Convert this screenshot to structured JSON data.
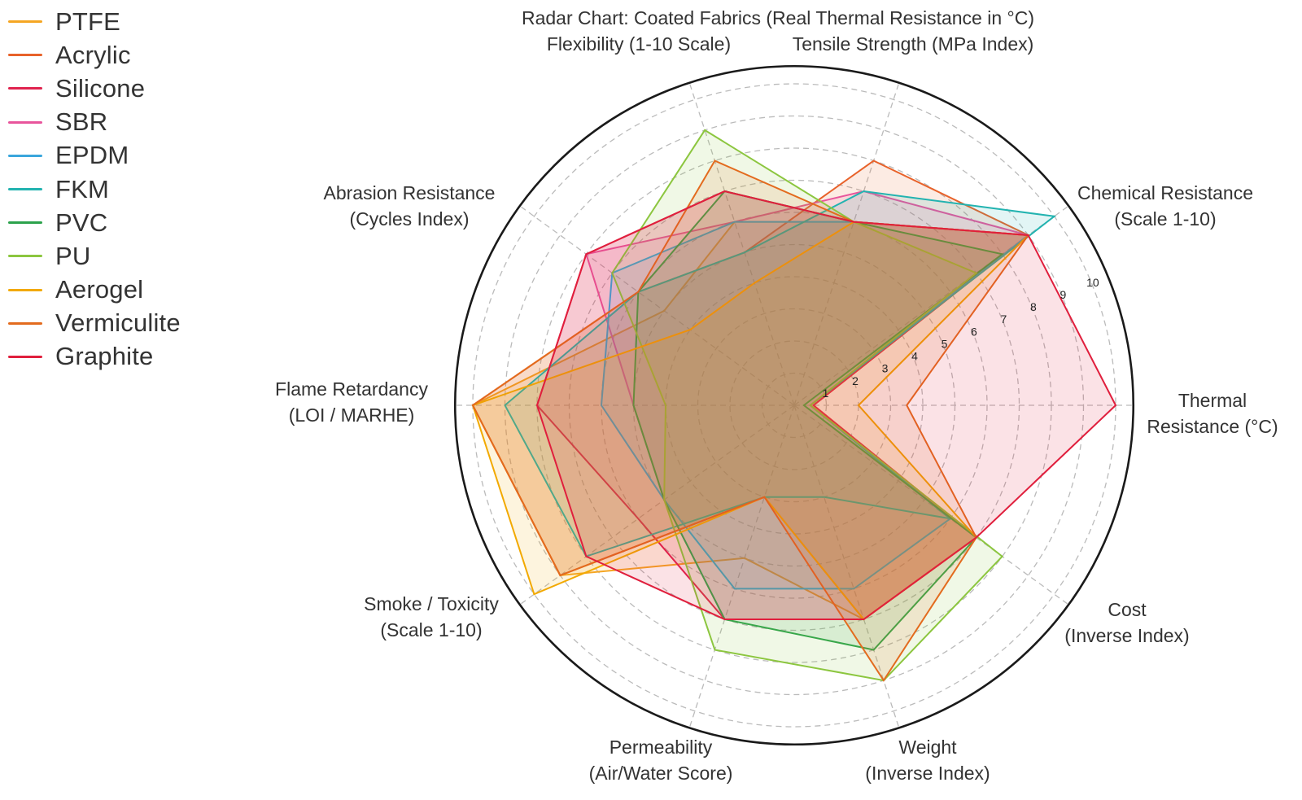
{
  "chart_data": {
    "type": "radar",
    "title": "Radar Chart: Coated Fabrics (Real Thermal Resistance in °C)",
    "axes": [
      {
        "label": "Thermal\nResistance (°C)",
        "angle": 0
      },
      {
        "label": "Chemical Resistance\n(Scale 1-10)",
        "angle": 36
      },
      {
        "label": "Tensile Strength (MPa Index)",
        "angle": 72
      },
      {
        "label": "Flexibility (1-10 Scale)",
        "angle": 108
      },
      {
        "label": "Abrasion Resistance\n(Cycles Index)",
        "angle": 144
      },
      {
        "label": "Flame Retardancy\n(LOI / MARHE)",
        "angle": 180
      },
      {
        "label": "Smoke / Toxicity\n(Scale 1-10)",
        "angle": 216
      },
      {
        "label": "Permeability\n(Air/Water Score)",
        "angle": 252
      },
      {
        "label": "Weight\n(Inverse Index)",
        "angle": 288
      },
      {
        "label": "Cost\n(Inverse Index)",
        "angle": 324
      }
    ],
    "categories": [
      "Thermal Resistance (°C)",
      "Chemical Resistance (Scale 1-10)",
      "Tensile Strength (MPa Index)",
      "Flexibility (1-10 Scale)",
      "Abrasion Resistance (Cycles Index)",
      "Flame Retardancy (LOI / MARHE)",
      "Smoke / Toxicity (Scale 1-10)",
      "Permeability (Air/Water Score)",
      "Weight (Inverse Index)",
      "Cost (Inverse Index)"
    ],
    "radial_ticks": [
      1,
      2,
      3,
      4,
      5,
      6,
      7,
      8,
      9,
      10
    ],
    "rlim": [
      0,
      10.5
    ],
    "grid": true,
    "legend_position": "upper-left",
    "series": [
      {
        "name": "PTFE",
        "color": "#f5a623",
        "values": [
          0.5,
          9,
          6,
          6,
          5,
          10,
          9,
          5,
          7,
          7
        ]
      },
      {
        "name": "Acrylic",
        "color": "#e8622a",
        "values": [
          0.6,
          9,
          8,
          5,
          6,
          10,
          9,
          3,
          7,
          7
        ]
      },
      {
        "name": "Silicone",
        "color": "#e0234e",
        "values": [
          0.6,
          9,
          6,
          7,
          8,
          8,
          6,
          7,
          7,
          7
        ]
      },
      {
        "name": "SBR",
        "color": "#e8559c",
        "values": [
          0.5,
          9,
          7,
          6,
          8,
          5,
          5,
          7,
          7,
          7
        ]
      },
      {
        "name": "EPDM",
        "color": "#3aa6dc",
        "values": [
          0.5,
          9,
          6,
          6,
          7,
          6,
          5,
          6,
          6,
          6
        ]
      },
      {
        "name": "FKM",
        "color": "#22b3b0",
        "values": [
          0.5,
          10,
          7,
          5,
          6,
          9,
          8,
          3,
          3,
          6
        ]
      },
      {
        "name": "PVC",
        "color": "#2ca24c",
        "values": [
          0.3,
          8,
          6,
          7,
          6,
          5,
          5,
          7,
          8,
          7
        ]
      },
      {
        "name": "PU",
        "color": "#8cc63f",
        "values": [
          0.5,
          7,
          6,
          9,
          7,
          4,
          5,
          8,
          9,
          8
        ]
      },
      {
        "name": "Aerogel",
        "color": "#f2a900",
        "values": [
          2,
          9,
          6,
          4,
          4,
          10,
          10,
          3,
          7,
          7
        ]
      },
      {
        "name": "Vermiculite",
        "color": "#e36b1e",
        "values": [
          3.5,
          9,
          6,
          8,
          6,
          10,
          9,
          3,
          9,
          7
        ]
      },
      {
        "name": "Graphite",
        "color": "#e01f3d",
        "values": [
          10,
          9,
          6,
          7,
          8,
          8,
          8,
          7,
          7,
          7
        ]
      }
    ]
  },
  "legend": {
    "items": [
      {
        "label": "PTFE",
        "color": "#f5a623"
      },
      {
        "label": "Acrylic",
        "color": "#e8622a"
      },
      {
        "label": "Silicone",
        "color": "#e0234e"
      },
      {
        "label": "SBR",
        "color": "#e8559c"
      },
      {
        "label": "EPDM",
        "color": "#3aa6dc"
      },
      {
        "label": "FKM",
        "color": "#22b3b0"
      },
      {
        "label": "PVC",
        "color": "#2ca24c"
      },
      {
        "label": "PU",
        "color": "#8cc63f"
      },
      {
        "label": "Aerogel",
        "color": "#f2a900"
      },
      {
        "label": "Vermiculite",
        "color": "#e36b1e"
      },
      {
        "label": "Graphite",
        "color": "#e01f3d"
      }
    ]
  },
  "labels": {
    "title": "Radar Chart: Coated Fabrics (Real Thermal Resistance in °C)"
  }
}
